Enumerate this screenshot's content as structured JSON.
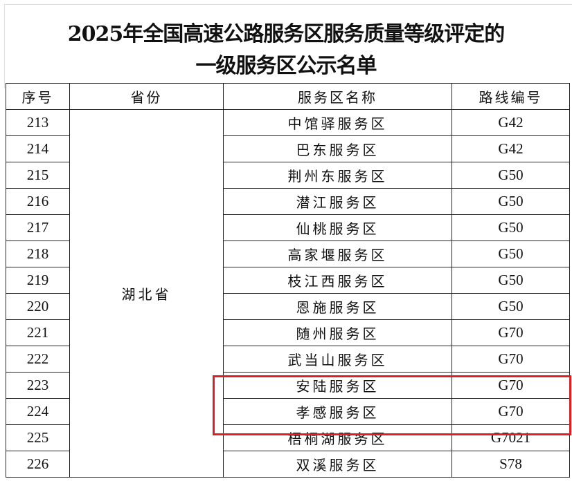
{
  "title": {
    "line1": "2025年全国高速公路服务区服务质量等级评定的",
    "line2": "一级服务区公示名单"
  },
  "table": {
    "headers": [
      "序号",
      "省份",
      "服务区名称",
      "路线编号"
    ],
    "province": "湖北省",
    "rows": [
      {
        "no": "213",
        "name": "中馆驿服务区",
        "route": "G42"
      },
      {
        "no": "214",
        "name": "巴东服务区",
        "route": "G42"
      },
      {
        "no": "215",
        "name": "荆州东服务区",
        "route": "G50"
      },
      {
        "no": "216",
        "name": "潜江服务区",
        "route": "G50"
      },
      {
        "no": "217",
        "name": "仙桃服务区",
        "route": "G50"
      },
      {
        "no": "218",
        "name": "高家堰服务区",
        "route": "G50"
      },
      {
        "no": "219",
        "name": "枝江西服务区",
        "route": "G50"
      },
      {
        "no": "220",
        "name": "恩施服务区",
        "route": "G50"
      },
      {
        "no": "221",
        "name": "随州服务区",
        "route": "G70"
      },
      {
        "no": "222",
        "name": "武当山服务区",
        "route": "G70"
      },
      {
        "no": "223",
        "name": "安陆服务区",
        "route": "G70"
      },
      {
        "no": "224",
        "name": "孝感服务区",
        "route": "G70"
      },
      {
        "no": "225",
        "name": "梧桐湖服务区",
        "route": "G7021"
      },
      {
        "no": "226",
        "name": "双溪服务区",
        "route": "S78"
      }
    ]
  },
  "highlight": {
    "color": "#e01c24",
    "rows": [
      "223",
      "224"
    ]
  }
}
